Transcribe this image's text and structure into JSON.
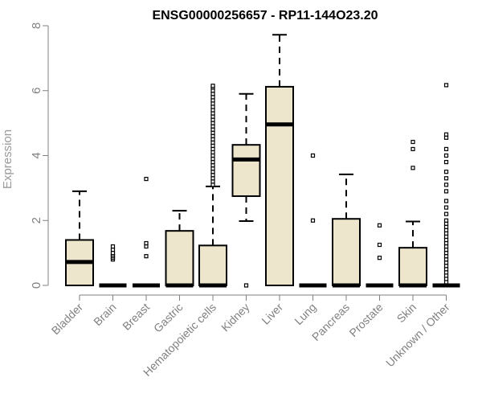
{
  "chart_data": {
    "type": "boxplot",
    "title": "ENSG00000256657 - RP11-144O23.20",
    "xlabel": "",
    "ylabel": "Expression",
    "ylim": [
      0,
      8
    ],
    "yticks": [
      0,
      2,
      4,
      6,
      8
    ],
    "box_fill": "#ede5cc",
    "categories": [
      "Bladder",
      "Brain",
      "Breast",
      "Gastric",
      "Hematopoietic cells",
      "Kidney",
      "Liver",
      "Lung",
      "Pancreas",
      "Prostate",
      "Skin",
      "Unknown / Other"
    ],
    "boxes": [
      {
        "q1": 0,
        "median": 0.72,
        "q3": 1.4,
        "whisker_low": 0,
        "whisker_high": 2.9,
        "outliers": []
      },
      {
        "q1": 0,
        "median": 0,
        "q3": 0,
        "whisker_low": 0,
        "whisker_high": 0,
        "outliers": [
          0.8,
          0.85,
          0.9,
          0.95,
          1.0,
          1.1,
          1.2
        ]
      },
      {
        "q1": 0,
        "median": 0,
        "q3": 0,
        "whisker_low": 0,
        "whisker_high": 0,
        "outliers": [
          0.9,
          1.2,
          1.3,
          3.28
        ]
      },
      {
        "q1": 0,
        "median": 0,
        "q3": 1.68,
        "whisker_low": 0,
        "whisker_high": 2.3,
        "outliers": []
      },
      {
        "q1": 0,
        "median": 0,
        "q3": 1.23,
        "whisker_low": 0,
        "whisker_high": 3.05,
        "outliers": [
          3.1,
          3.2,
          3.3,
          3.4,
          3.5,
          3.6,
          3.7,
          3.8,
          3.9,
          4.0,
          4.1,
          4.2,
          4.3,
          4.4,
          4.5,
          4.6,
          4.7,
          4.8,
          4.9,
          5.0,
          5.1,
          5.2,
          5.3,
          5.4,
          5.5,
          5.6,
          5.7,
          5.8,
          5.9,
          6.0,
          6.1,
          6.15
        ]
      },
      {
        "q1": 2.75,
        "median": 3.88,
        "q3": 4.33,
        "whisker_low": 1.98,
        "whisker_high": 5.9,
        "outliers": [
          0
        ]
      },
      {
        "q1": 0,
        "median": 4.96,
        "q3": 6.12,
        "whisker_low": 0,
        "whisker_high": 7.72,
        "outliers": []
      },
      {
        "q1": 0,
        "median": 0,
        "q3": 0,
        "whisker_low": 0,
        "whisker_high": 0,
        "outliers": [
          2.0,
          4.0
        ]
      },
      {
        "q1": 0,
        "median": 0,
        "q3": 2.05,
        "whisker_low": 0,
        "whisker_high": 3.42,
        "outliers": []
      },
      {
        "q1": 0,
        "median": 0,
        "q3": 0,
        "whisker_low": 0,
        "whisker_high": 0,
        "outliers": [
          0.85,
          1.25,
          1.85
        ]
      },
      {
        "q1": 0,
        "median": 0,
        "q3": 1.16,
        "whisker_low": 0,
        "whisker_high": 1.97,
        "outliers": [
          3.62,
          4.2,
          4.42
        ]
      },
      {
        "q1": 0,
        "median": 0,
        "q3": 0,
        "whisker_low": 0,
        "whisker_high": 0,
        "outliers": [
          0.1,
          0.2,
          0.3,
          0.4,
          0.5,
          0.6,
          0.7,
          0.8,
          0.9,
          1.0,
          1.1,
          1.2,
          1.3,
          1.4,
          1.5,
          1.6,
          1.7,
          1.8,
          1.9,
          2.0,
          2.2,
          2.4,
          2.6,
          2.9,
          3.1,
          3.3,
          3.5,
          3.8,
          4.0,
          4.2,
          4.55,
          4.65,
          6.17
        ]
      }
    ]
  }
}
